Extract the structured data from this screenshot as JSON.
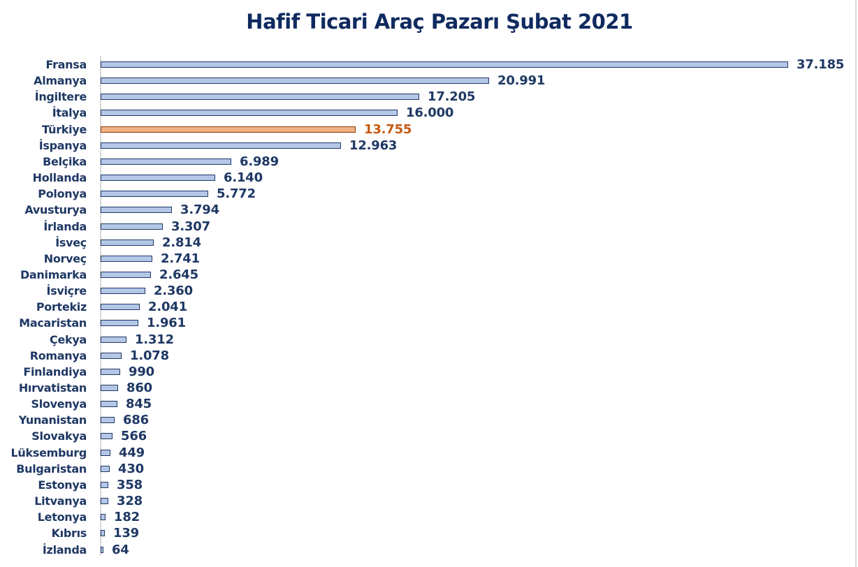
{
  "title": "Hafif Ticari Araç Pazarı Şubat 2021",
  "colors": {
    "bar_fill": "#b4c7e7",
    "bar_border": "#1f3864",
    "highlight_fill": "#f4b183",
    "highlight_border": "#843c0c",
    "highlight_label": "#c55a11",
    "text": "#1f3864"
  },
  "chart_data": {
    "type": "bar",
    "orientation": "horizontal",
    "title": "Hafif Ticari Araç Pazarı Şubat 2021",
    "xlabel": "",
    "ylabel": "",
    "grid": false,
    "legend": null,
    "highlight_category": "Türkiye",
    "categories": [
      "Fransa",
      "Almanya",
      "İngiltere",
      "İtalya",
      "Türkiye",
      "İspanya",
      "Belçika",
      "Hollanda",
      "Polonya",
      "Avusturya",
      "İrlanda",
      "İsveç",
      "Norveç",
      "Danimarka",
      "İsviçre",
      "Portekiz",
      "Macaristan",
      "Çekya",
      "Romanya",
      "Finlandiya",
      "Hırvatistan",
      "Slovenya",
      "Yunanistan",
      "Slovakya",
      "Lüksemburg",
      "Bulgaristan",
      "Estonya",
      "Litvanya",
      "Letonya",
      "Kıbrıs",
      "İzlanda"
    ],
    "values": [
      37185,
      20991,
      17205,
      16000,
      13755,
      12963,
      6989,
      6140,
      5772,
      3794,
      3307,
      2814,
      2741,
      2645,
      2360,
      2041,
      1961,
      1312,
      1078,
      990,
      860,
      845,
      686,
      566,
      449,
      430,
      358,
      328,
      182,
      139,
      64
    ],
    "value_labels": [
      "37.185",
      "20.991",
      "17.205",
      "16.000",
      "13.755",
      "12.963",
      "6.989",
      "6.140",
      "5.772",
      "3.794",
      "3.307",
      "2.814",
      "2.741",
      "2.645",
      "2.360",
      "2.041",
      "1.961",
      "1.312",
      "1.078",
      "990",
      "860",
      "845",
      "686",
      "566",
      "449",
      "430",
      "358",
      "328",
      "182",
      "139",
      "64"
    ],
    "xlim": [
      0,
      37185
    ]
  }
}
